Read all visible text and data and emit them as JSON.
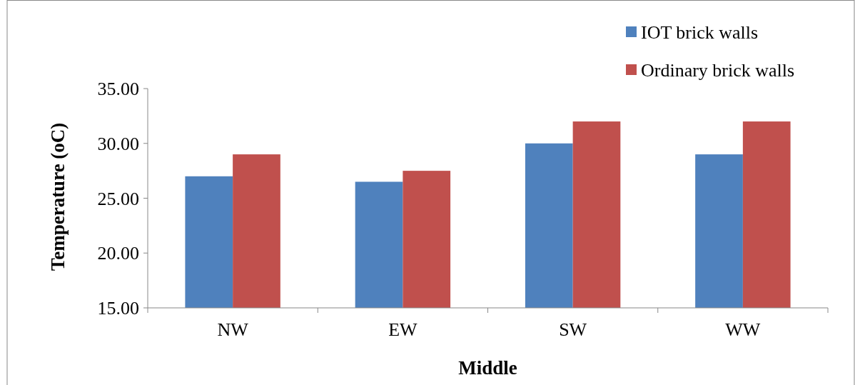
{
  "chart_data": {
    "type": "bar",
    "xlabel": "Middle",
    "ylabel": "Temperature (oC)",
    "categories": [
      "NW",
      "EW",
      "SW",
      "WW"
    ],
    "series": [
      {
        "name": "IOT brick walls",
        "color": "#4f81bd",
        "values": [
          27,
          26.5,
          30,
          29
        ]
      },
      {
        "name": "Ordinary brick walls",
        "color": "#c0504d",
        "values": [
          29,
          27.5,
          32,
          32
        ]
      }
    ],
    "ylim": [
      15,
      35
    ],
    "yticks": [
      {
        "value": 15,
        "label": "15.00"
      },
      {
        "value": 20,
        "label": "20.00"
      },
      {
        "value": 25,
        "label": "25.00"
      },
      {
        "value": 30,
        "label": "30.00"
      },
      {
        "value": 35,
        "label": "35.00"
      }
    ],
    "grid": false,
    "legend": "top right"
  }
}
